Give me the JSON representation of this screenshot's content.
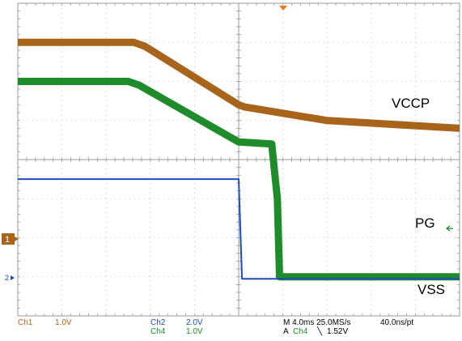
{
  "chart_data": {
    "type": "line",
    "x_unit": "ms",
    "x_range": [
      0,
      40
    ],
    "y_unit": "div",
    "y_range": [
      -4,
      4
    ],
    "series": [
      {
        "name": "VCCP",
        "color": "#a8641a",
        "thickness": "thick",
        "points": [
          [
            0,
            3.0
          ],
          [
            10.5,
            3.0
          ],
          [
            11.5,
            2.9
          ],
          [
            20,
            1.4
          ],
          [
            20.5,
            1.35
          ],
          [
            28,
            1.0
          ],
          [
            40,
            0.8
          ]
        ]
      },
      {
        "name": "",
        "color": "#1e8c2a",
        "thickness": "thick",
        "points": [
          [
            0,
            2.0
          ],
          [
            10.0,
            2.0
          ],
          [
            11.0,
            1.9
          ],
          [
            20,
            0.45
          ],
          [
            23.0,
            0.4
          ],
          [
            23.1,
            0.1
          ],
          [
            23.5,
            -1.0
          ],
          [
            23.7,
            -3.0
          ],
          [
            40,
            -3.0
          ]
        ]
      },
      {
        "name": "",
        "color": "#1f4bbf",
        "thickness": "thin",
        "points": [
          [
            0,
            -0.5
          ],
          [
            20.0,
            -0.5
          ],
          [
            20.3,
            -3.05
          ],
          [
            40,
            -3.05
          ]
        ]
      }
    ]
  },
  "annotations": {
    "vccp": "VCCP",
    "pg": "PG",
    "vss": "VSS"
  },
  "markers": {
    "ch1": "1",
    "ch2": "2"
  },
  "status": {
    "ch1_label": "Ch1",
    "ch1_scale": "1.0V",
    "ch2_label": "Ch2",
    "ch2_scale": "2.0V",
    "ch4_label": "Ch4",
    "ch4_scale": "1.0V",
    "timebase": "M 4.0ms 25.0MS/s",
    "sample_interval": "40.0ns/pt",
    "trigger_prefix": "A",
    "trigger_channel": "Ch4",
    "trigger_slope": "╲",
    "trigger_level": "1.52V"
  },
  "colors": {
    "ch1": "#a8641a",
    "ch2": "#1f4bbf",
    "ch4": "#1e8c2a",
    "grid": "#9a9a9a",
    "trigger_marker": "#f07820"
  }
}
